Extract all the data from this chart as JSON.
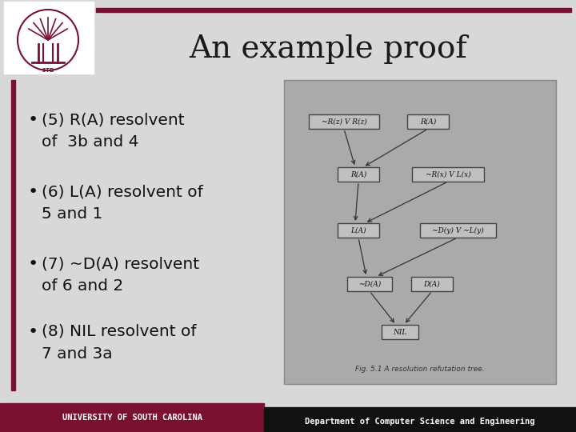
{
  "title": "An example proof",
  "title_fontsize": 28,
  "title_color": "#1a1a1a",
  "slide_bg": "#d8d8d8",
  "top_bar_color": "#7a1030",
  "bullet_points": [
    "(5) R(A) resolvent\nof  3b and 4",
    "(6) L(A) resolvent of\n5 and 1",
    "(7) ~D(A) resolvent\nof 6 and 2",
    "(8) NIL resolvent of\n7 and 3a"
  ],
  "bullet_fontsize": 14.5,
  "bullet_color": "#111111",
  "footer_left_text": "UNIVERSITY OF SOUTH CAROLINA",
  "footer_right_text": "Department of Computer Science and Engineering",
  "footer_bg_left": "#7a1030",
  "footer_bg_right": "#111111",
  "footer_text_color_left": "#ffffff",
  "footer_text_color_right": "#ffffff",
  "graph_bg": "#aaaaaa",
  "graph_box_fill": "#c0c0c0",
  "graph_box_border": "#444444",
  "graph_text_color": "#111111",
  "graph_caption": "Fig. 5.1 A resolution refutation tree.",
  "graph_nodes": {
    "top_left": "~R(z) V R(z)",
    "top_right": "R(A)",
    "mid_left": "R(A)",
    "mid_right": "~R(x) V L(x)",
    "low_left": "L(A)",
    "low_right": "~D(y) V ~L(y)",
    "bot_left": "~D(A)",
    "bot_right": "D(A)",
    "nil": "NIL"
  },
  "left_bar_color": "#7a1030",
  "logo_color": "#7a1030",
  "white_bg": "#ffffff"
}
